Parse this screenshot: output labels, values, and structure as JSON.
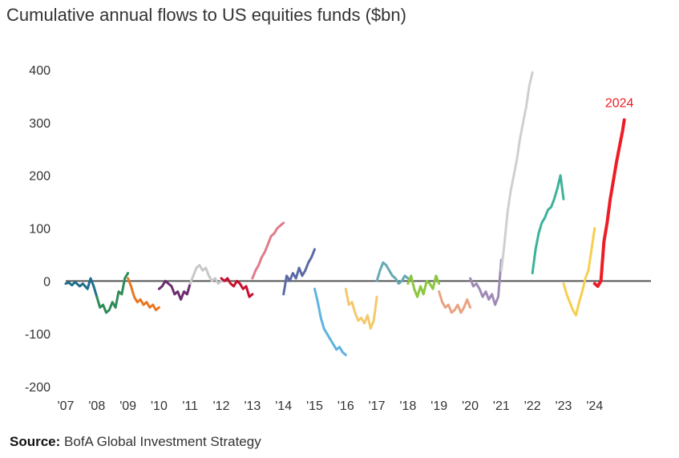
{
  "title": "Cumulative annual flows to US equities funds ($bn)",
  "source": {
    "label": "Source:",
    "text": "BofA Global Investment Strategy"
  },
  "chart_data": {
    "type": "line",
    "title": "Cumulative annual flows to US equities funds ($bn)",
    "xlabel": "",
    "ylabel": "",
    "ylim": [
      -200,
      400
    ],
    "xlim": [
      2007,
      2025
    ],
    "y_ticks": [
      400,
      300,
      200,
      100,
      0,
      -100,
      -200
    ],
    "y_tick_labels": [
      "400",
      "300",
      "200",
      "100",
      "0",
      "-100",
      "-200"
    ],
    "x_ticks": [
      2007,
      2008,
      2009,
      2010,
      2011,
      2012,
      2013,
      2014,
      2015,
      2016,
      2017,
      2018,
      2019,
      2020,
      2021,
      2022,
      2023,
      2024
    ],
    "x_tick_labels": [
      "'07",
      "'08",
      "'09",
      "'10",
      "'11",
      "'12",
      "'13",
      "'14",
      "'15",
      "'16",
      "'17",
      "'18",
      "'19",
      "'20",
      "'21",
      "'22",
      "'23",
      "'24"
    ],
    "zero_line": true,
    "grid": false,
    "annotation": {
      "text": "2024",
      "color": "#ee1c25"
    },
    "series": [
      {
        "color": "#1f6e8c",
        "x": [
          2007,
          2007.1,
          2007.2,
          2007.3,
          2007.45,
          2007.55,
          2007.7,
          2007.8,
          2007.9,
          2008
        ],
        "y": [
          -5,
          -3,
          -8,
          -2,
          -10,
          -5,
          -15,
          5,
          -10,
          -30
        ]
      },
      {
        "color": "#2e8b57",
        "x": [
          2008,
          2008.1,
          2008.2,
          2008.3,
          2008.4,
          2008.5,
          2008.6,
          2008.7,
          2008.8,
          2008.9,
          2009
        ],
        "y": [
          -30,
          -50,
          -45,
          -60,
          -55,
          -40,
          -50,
          -20,
          -25,
          5,
          15
        ]
      },
      {
        "color": "#e87722",
        "x": [
          2009,
          2009.1,
          2009.2,
          2009.3,
          2009.4,
          2009.5,
          2009.6,
          2009.7,
          2009.8,
          2009.9,
          2010
        ],
        "y": [
          5,
          -10,
          -30,
          -40,
          -35,
          -45,
          -40,
          -50,
          -45,
          -55,
          -50
        ]
      },
      {
        "color": "#6b2c6e",
        "x": [
          2010,
          2010.1,
          2010.2,
          2010.3,
          2010.4,
          2010.5,
          2010.6,
          2010.7,
          2010.8,
          2010.9,
          2011
        ],
        "y": [
          -15,
          -10,
          0,
          -5,
          -10,
          -25,
          -20,
          -35,
          -20,
          -25,
          -5
        ]
      },
      {
        "color": "#c8c8c8",
        "x": [
          2011,
          2011.1,
          2011.2,
          2011.3,
          2011.4,
          2011.5,
          2011.6,
          2011.7,
          2011.8,
          2011.9,
          2012
        ],
        "y": [
          -5,
          10,
          25,
          30,
          20,
          25,
          10,
          0,
          5,
          -5,
          0
        ]
      },
      {
        "color": "#c8102e",
        "x": [
          2012,
          2012.1,
          2012.2,
          2012.3,
          2012.4,
          2012.5,
          2012.6,
          2012.7,
          2012.8,
          2012.9,
          2013
        ],
        "y": [
          5,
          0,
          5,
          -5,
          -10,
          0,
          -5,
          -15,
          -10,
          -30,
          -25
        ]
      },
      {
        "color": "#e07b8a",
        "x": [
          2013,
          2013.1,
          2013.2,
          2013.3,
          2013.4,
          2013.5,
          2013.6,
          2013.7,
          2013.8,
          2013.9,
          2014
        ],
        "y": [
          5,
          20,
          30,
          45,
          55,
          70,
          85,
          90,
          100,
          105,
          110
        ]
      },
      {
        "color": "#5b6aa6",
        "x": [
          2014,
          2014.1,
          2014.2,
          2014.3,
          2014.4,
          2014.5,
          2014.6,
          2014.7,
          2014.8,
          2014.9,
          2015
        ],
        "y": [
          -25,
          10,
          0,
          15,
          5,
          25,
          10,
          20,
          35,
          45,
          60
        ]
      },
      {
        "color": "#5fb4e0",
        "x": [
          2015,
          2015.1,
          2015.2,
          2015.3,
          2015.4,
          2015.5,
          2015.6,
          2015.7,
          2015.8,
          2015.9,
          2016
        ],
        "y": [
          -15,
          -40,
          -70,
          -90,
          -100,
          -110,
          -120,
          -130,
          -125,
          -135,
          -140
        ]
      },
      {
        "color": "#f3c96b",
        "x": [
          2016,
          2016.1,
          2016.2,
          2016.3,
          2016.4,
          2016.5,
          2016.6,
          2016.7,
          2016.8,
          2016.9,
          2017
        ],
        "y": [
          -15,
          -45,
          -40,
          -60,
          -75,
          -70,
          -80,
          -65,
          -90,
          -75,
          -30
        ]
      },
      {
        "color": "#66a9b5",
        "x": [
          2017,
          2017.1,
          2017.2,
          2017.3,
          2017.4,
          2017.5,
          2017.6,
          2017.7,
          2017.8,
          2017.9,
          2018
        ],
        "y": [
          0,
          20,
          35,
          30,
          20,
          10,
          5,
          -5,
          0,
          10,
          5
        ]
      },
      {
        "color": "#8cc63f",
        "x": [
          2018,
          2018.1,
          2018.2,
          2018.3,
          2018.4,
          2018.5,
          2018.6,
          2018.7,
          2018.8,
          2018.9,
          2019
        ],
        "y": [
          -5,
          10,
          -15,
          -30,
          -10,
          -25,
          0,
          -5,
          -15,
          10,
          -5
        ]
      },
      {
        "color": "#e9a282",
        "x": [
          2019,
          2019.1,
          2019.2,
          2019.3,
          2019.4,
          2019.5,
          2019.6,
          2019.7,
          2019.8,
          2019.9,
          2020
        ],
        "y": [
          -20,
          -40,
          -50,
          -45,
          -60,
          -55,
          -45,
          -60,
          -50,
          -35,
          -50
        ]
      },
      {
        "color": "#a08ab5",
        "x": [
          2020,
          2020.1,
          2020.2,
          2020.3,
          2020.4,
          2020.5,
          2020.6,
          2020.7,
          2020.8,
          2020.9,
          2021
        ],
        "y": [
          5,
          -10,
          -5,
          -15,
          -30,
          -20,
          -35,
          -25,
          -45,
          -30,
          40
        ]
      },
      {
        "color": "#cfcfcf",
        "x": [
          2021,
          2021.1,
          2021.2,
          2021.3,
          2021.4,
          2021.5,
          2021.6,
          2021.7,
          2021.8,
          2021.9,
          2022
        ],
        "y": [
          20,
          70,
          130,
          170,
          200,
          230,
          270,
          300,
          330,
          370,
          395
        ]
      },
      {
        "color": "#3bb39a",
        "x": [
          2022,
          2022.1,
          2022.2,
          2022.3,
          2022.4,
          2022.5,
          2022.6,
          2022.7,
          2022.8,
          2022.9,
          2023
        ],
        "y": [
          15,
          60,
          90,
          110,
          120,
          135,
          140,
          155,
          175,
          200,
          155
        ]
      },
      {
        "color": "#f5cf4e",
        "x": [
          2023,
          2023.1,
          2023.2,
          2023.3,
          2023.4,
          2023.5,
          2023.6,
          2023.7,
          2023.8,
          2023.9,
          2024
        ],
        "y": [
          -5,
          -25,
          -40,
          -55,
          -65,
          -40,
          -20,
          5,
          20,
          60,
          100
        ]
      },
      {
        "color": "#ee1c25",
        "x": [
          2024,
          2024.1,
          2024.2,
          2024.3,
          2024.4,
          2024.5,
          2024.6,
          2024.7,
          2024.8,
          2024.9,
          2024.95
        ],
        "y": [
          -5,
          -10,
          0,
          75,
          110,
          155,
          190,
          225,
          255,
          285,
          305
        ]
      }
    ]
  }
}
